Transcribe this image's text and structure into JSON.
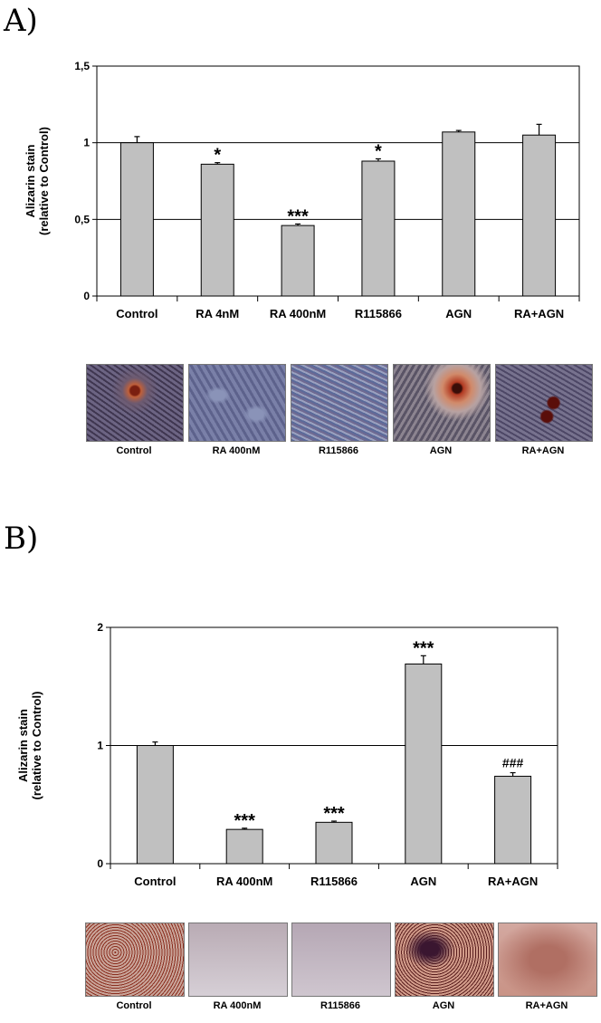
{
  "panelA": {
    "letter": "A)",
    "chart_data": {
      "type": "bar",
      "categories": [
        "Control",
        "RA 4nM",
        "RA 400nM",
        "R115866",
        "AGN",
        "RA+AGN"
      ],
      "values": [
        1.0,
        0.86,
        0.46,
        0.88,
        1.07,
        1.05
      ],
      "errors": [
        0.04,
        0.01,
        0.01,
        0.015,
        0.01,
        0.07
      ],
      "significance": [
        "",
        "*",
        "***",
        "*",
        "",
        ""
      ],
      "ylabel_line1": "Alizarin stain",
      "ylabel_line2": "(relative to Control)",
      "ylim": [
        0,
        1.5
      ],
      "yticks": [
        0,
        0.5,
        1,
        1.5
      ],
      "ytick_labels": [
        "0",
        "0,5",
        "1",
        "1,5"
      ],
      "gridlines": [
        0.5,
        1
      ],
      "bar_color": "#c0c0c0"
    },
    "photos": [
      {
        "label": "Control"
      },
      {
        "label": "RA 400nM"
      },
      {
        "label": "R115866"
      },
      {
        "label": "AGN"
      },
      {
        "label": "RA+AGN"
      }
    ]
  },
  "panelB": {
    "letter": "B)",
    "chart_data": {
      "type": "bar",
      "categories": [
        "Control",
        "RA 400nM",
        "R115866",
        "AGN",
        "RA+AGN"
      ],
      "values": [
        1.0,
        0.29,
        0.35,
        1.69,
        0.74
      ],
      "errors": [
        0.03,
        0.01,
        0.01,
        0.07,
        0.03
      ],
      "significance": [
        "",
        "***",
        "***",
        "***",
        "###"
      ],
      "ylabel_line1": "Alizarin stain",
      "ylabel_line2": "(relative to Control)",
      "ylim": [
        0,
        2
      ],
      "yticks": [
        0,
        1,
        2
      ],
      "ytick_labels": [
        "0",
        "1",
        "2"
      ],
      "gridlines": [
        1
      ],
      "bar_color": "#c0c0c0"
    },
    "photos": [
      {
        "label": "Control"
      },
      {
        "label": "RA 400nM"
      },
      {
        "label": "R115866"
      },
      {
        "label": "AGN"
      },
      {
        "label": "RA+AGN"
      }
    ]
  }
}
